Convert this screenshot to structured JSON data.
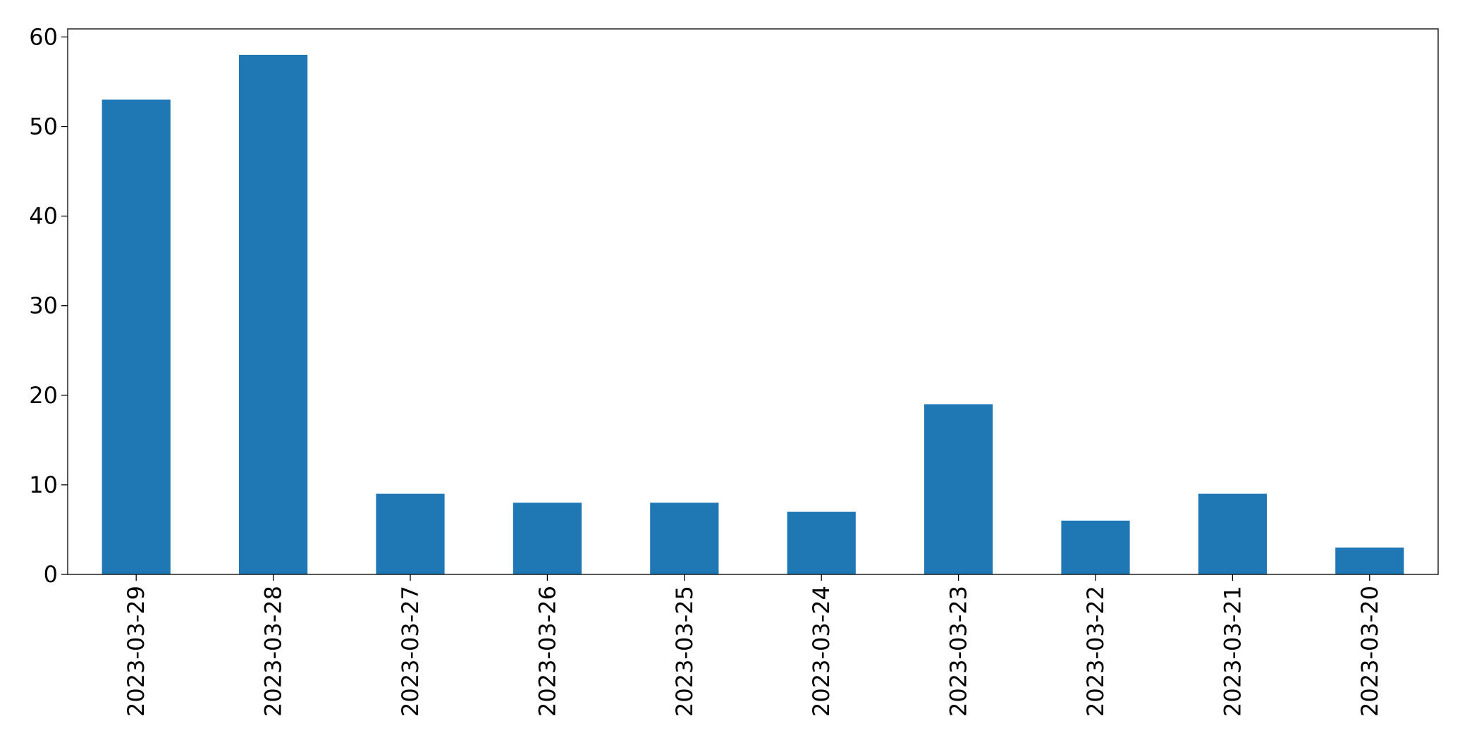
{
  "chart_data": {
    "type": "bar",
    "categories": [
      "2023-03-29",
      "2023-03-28",
      "2023-03-27",
      "2023-03-26",
      "2023-03-25",
      "2023-03-24",
      "2023-03-23",
      "2023-03-22",
      "2023-03-21",
      "2023-03-20"
    ],
    "values": [
      53,
      58,
      9,
      8,
      8,
      7,
      19,
      6,
      9,
      3
    ],
    "color": "#1f77b4",
    "ylim": [
      0,
      60.9
    ],
    "yticks": [
      0,
      10,
      20,
      30,
      40,
      50,
      60
    ],
    "grid": false
  }
}
